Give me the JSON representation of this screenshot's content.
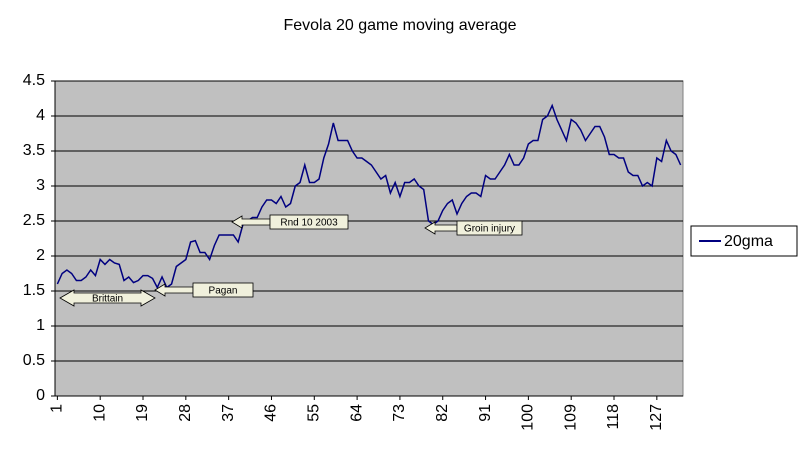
{
  "chart_data": {
    "type": "line",
    "title": "Fevola 20 game moving average",
    "x": [
      1,
      2,
      3,
      4,
      5,
      6,
      7,
      8,
      9,
      10,
      11,
      12,
      13,
      14,
      15,
      16,
      17,
      18,
      19,
      20,
      21,
      22,
      23,
      24,
      25,
      26,
      27,
      28,
      29,
      30,
      31,
      32,
      33,
      34,
      35,
      36,
      37,
      38,
      39,
      40,
      41,
      42,
      43,
      44,
      45,
      46,
      47,
      48,
      49,
      50,
      51,
      52,
      53,
      54,
      55,
      56,
      57,
      58,
      59,
      60,
      61,
      62,
      63,
      64,
      65,
      66,
      67,
      68,
      69,
      70,
      71,
      72,
      73,
      74,
      75,
      76,
      77,
      78,
      79,
      80,
      81,
      82,
      83,
      84,
      85,
      86,
      87,
      88,
      89,
      90,
      91,
      92,
      93,
      94,
      95,
      96,
      97,
      98,
      99,
      100,
      101,
      102,
      103,
      104,
      105,
      106,
      107,
      108,
      109,
      110,
      111,
      112,
      113,
      114,
      115,
      116,
      117,
      118,
      119,
      120,
      121,
      122,
      123,
      124,
      125,
      126,
      127,
      128,
      129,
      130,
      131,
      132
    ],
    "series": [
      {
        "name": "20gma",
        "color": "#000080",
        "values": [
          1.6,
          1.75,
          1.8,
          1.75,
          1.65,
          1.65,
          1.7,
          1.8,
          1.72,
          1.95,
          1.88,
          1.95,
          1.9,
          1.88,
          1.65,
          1.7,
          1.62,
          1.65,
          1.72,
          1.72,
          1.68,
          1.55,
          1.7,
          1.55,
          1.6,
          1.85,
          1.9,
          1.95,
          2.2,
          2.22,
          2.05,
          2.05,
          1.95,
          2.15,
          2.3,
          2.3,
          2.3,
          2.3,
          2.2,
          2.45,
          2.5,
          2.55,
          2.55,
          2.7,
          2.8,
          2.8,
          2.75,
          2.85,
          2.7,
          2.75,
          3.0,
          3.05,
          3.3,
          3.05,
          3.05,
          3.1,
          3.4,
          3.6,
          3.9,
          3.65,
          3.65,
          3.65,
          3.5,
          3.4,
          3.4,
          3.35,
          3.3,
          3.2,
          3.1,
          3.15,
          2.9,
          3.05,
          2.85,
          3.05,
          3.05,
          3.1,
          3.0,
          2.95,
          2.5,
          2.45,
          2.5,
          2.65,
          2.75,
          2.8,
          2.6,
          2.75,
          2.85,
          2.9,
          2.9,
          2.85,
          3.15,
          3.1,
          3.1,
          3.2,
          3.3,
          3.45,
          3.3,
          3.3,
          3.4,
          3.6,
          3.65,
          3.65,
          3.95,
          4.0,
          4.15,
          3.95,
          3.8,
          3.65,
          3.95,
          3.9,
          3.8,
          3.65,
          3.75,
          3.85,
          3.85,
          3.7,
          3.45,
          3.45,
          3.4,
          3.4,
          3.2,
          3.15,
          3.15,
          3.0,
          3.05,
          3.0,
          3.4,
          3.35,
          3.65,
          3.5,
          3.45,
          3.3
        ]
      }
    ],
    "xlim": [
      0.5,
      132.5
    ],
    "xticks": [
      1,
      10,
      19,
      28,
      37,
      46,
      55,
      64,
      73,
      82,
      91,
      100,
      109,
      118,
      127
    ],
    "ylim": [
      0,
      4.5
    ],
    "yticks": [
      0,
      0.5,
      1,
      1.5,
      2,
      2.5,
      3,
      3.5,
      4,
      4.5
    ],
    "grid": true,
    "annotations": [
      "Brittain",
      "Pagan",
      "Rnd 10 2003",
      "Groin injury"
    ]
  }
}
